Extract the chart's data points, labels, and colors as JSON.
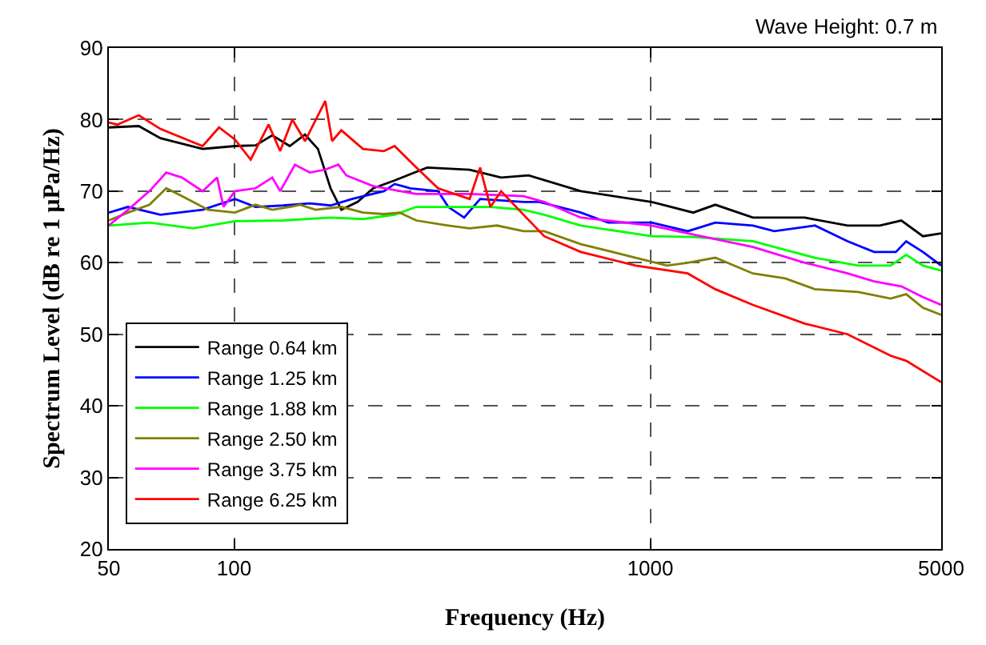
{
  "chart_data": {
    "type": "line",
    "xlabel": "Frequency (Hz)",
    "ylabel": "Spectrum Level (dB re 1 μPa/Hz)",
    "annotations": [
      "Wave Height: 0.7 m"
    ],
    "log": "x",
    "xlim": [
      50,
      5000
    ],
    "xticks": [
      50,
      100,
      1000,
      5000
    ],
    "ylim": [
      20,
      90
    ],
    "yticks": [
      20,
      30,
      40,
      50,
      60,
      70,
      80,
      90
    ],
    "grid": true,
    "legend": "bottom left",
    "marker": "none",
    "line_style": "solid",
    "series": [
      {
        "name": "Range 0.64 km",
        "color": "#000000",
        "x": [
          50,
          59,
          66.5,
          84,
          100.5,
          112.6,
          123.5,
          136,
          148,
          159,
          170.5,
          181,
          198,
          216,
          243,
          291,
          368,
          438,
          510,
          681,
          1007,
          1268,
          1433,
          1764,
          2350,
          2980,
          3560,
          4010,
          4520,
          5000
        ],
        "values": [
          78.9,
          79.1,
          77.4,
          75.9,
          76.3,
          76.4,
          77.8,
          76.3,
          77.9,
          75.9,
          70.4,
          67.4,
          68.5,
          70.4,
          71.5,
          73.3,
          73.0,
          71.9,
          72.2,
          70.0,
          68.5,
          67.0,
          68.1,
          66.3,
          66.3,
          65.2,
          65.2,
          65.9,
          63.7,
          64.1
        ]
      },
      {
        "name": "Range 1.25 km",
        "color": "#0000ff",
        "x": [
          50,
          55.6,
          66.5,
          84,
          100.5,
          112.6,
          131,
          152,
          170.5,
          192,
          229,
          243,
          265,
          309,
          327,
          357,
          390,
          496,
          541,
          681,
          792,
          1007,
          1230,
          1433,
          1764,
          1986,
          2485,
          2980,
          3450,
          3890,
          4120,
          4520,
          5000
        ],
        "values": [
          67.0,
          67.8,
          66.7,
          67.4,
          68.9,
          67.8,
          68.0,
          68.3,
          68.0,
          68.9,
          70.0,
          71.0,
          70.4,
          70.0,
          67.8,
          66.3,
          68.9,
          68.5,
          68.5,
          67.0,
          65.6,
          65.6,
          64.4,
          65.6,
          65.2,
          64.4,
          65.2,
          63.0,
          61.5,
          61.5,
          63.0,
          61.5,
          59.6
        ]
      },
      {
        "name": "Range 1.88 km",
        "color": "#00ff00",
        "x": [
          50,
          62.6,
          79.6,
          100.5,
          131,
          170.5,
          204,
          243,
          274,
          327,
          413,
          496,
          556,
          681,
          1007,
          1268,
          1764,
          1986,
          2485,
          3160,
          3780,
          4120,
          4520,
          5000
        ],
        "values": [
          65.2,
          65.6,
          64.8,
          65.8,
          65.9,
          66.3,
          66.1,
          66.7,
          67.8,
          67.8,
          67.8,
          67.4,
          66.7,
          65.2,
          63.7,
          63.6,
          63.0,
          62.2,
          60.7,
          59.6,
          59.6,
          61.1,
          59.6,
          58.9
        ]
      },
      {
        "name": "Range 2.50 km",
        "color": "#808000",
        "x": [
          50,
          55.6,
          62.6,
          68.7,
          74.9,
          86.6,
          100.5,
          112.6,
          123.5,
          136,
          144,
          157,
          181,
          204,
          229,
          250,
          274,
          327,
          368,
          428,
          496,
          556,
          681,
          922,
          1097,
          1230,
          1433,
          1764,
          2110,
          2485,
          3160,
          3780,
          4120,
          4520,
          5000
        ],
        "values": [
          65.9,
          67.0,
          68.1,
          70.4,
          69.3,
          67.4,
          67.0,
          68.1,
          67.4,
          67.8,
          68.1,
          67.4,
          67.8,
          67.0,
          66.8,
          67.0,
          65.9,
          65.2,
          64.8,
          65.2,
          64.4,
          64.4,
          62.6,
          60.7,
          59.6,
          60.0,
          60.7,
          58.5,
          57.8,
          56.3,
          55.9,
          55.0,
          55.6,
          53.7,
          52.7
        ]
      },
      {
        "name": "Range 3.75 km",
        "color": "#ff00ff",
        "x": [
          50,
          55.6,
          62.6,
          68.7,
          74.9,
          84,
          91,
          94.3,
          100.5,
          112.6,
          123.5,
          129,
          140,
          152,
          165.6,
          178,
          186,
          216,
          274,
          368,
          496,
          556,
          681,
          1007,
          1230,
          1764,
          2350,
          2980,
          3450,
          4010,
          4520,
          5000
        ],
        "values": [
          65.2,
          67.4,
          70.0,
          72.6,
          71.9,
          70.0,
          71.9,
          67.8,
          70.0,
          70.4,
          71.9,
          70.0,
          73.7,
          72.6,
          73.0,
          73.7,
          72.2,
          70.7,
          69.6,
          69.6,
          69.3,
          68.5,
          66.3,
          65.2,
          64.1,
          62.2,
          60.0,
          58.5,
          57.4,
          56.7,
          55.2,
          54.1
        ]
      },
      {
        "name": "Range 6.25 km",
        "color": "#ff0000",
        "x": [
          50,
          52.4,
          59,
          66.5,
          84,
          92,
          100.5,
          109.6,
          121,
          129,
          138,
          148,
          165.6,
          172,
          181,
          204,
          229,
          243,
          274,
          309,
          368,
          390,
          413,
          438,
          496,
          556,
          681,
          922,
          1230,
          1433,
          1764,
          2350,
          2980,
          3780,
          4120,
          5000
        ],
        "values": [
          79.6,
          79.3,
          80.6,
          78.7,
          76.3,
          78.9,
          77.2,
          74.4,
          79.3,
          75.6,
          80.0,
          77.0,
          82.6,
          77.0,
          78.5,
          75.9,
          75.6,
          76.3,
          73.3,
          70.4,
          68.9,
          73.3,
          67.8,
          70.0,
          66.7,
          63.7,
          61.5,
          59.6,
          58.5,
          56.3,
          54.1,
          51.5,
          50.0,
          47.0,
          46.3,
          43.3
        ]
      }
    ]
  }
}
